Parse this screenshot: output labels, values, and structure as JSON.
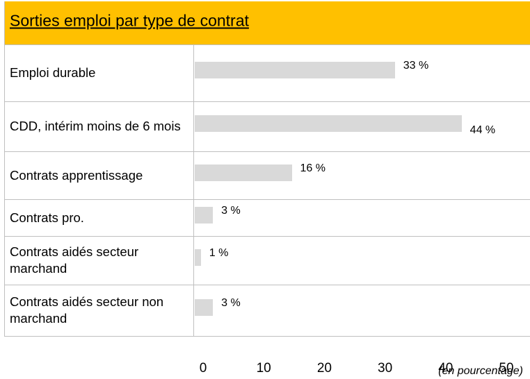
{
  "chart_data": {
    "type": "bar",
    "orientation": "horizontal",
    "title": "Sorties emploi par type de contrat",
    "categories": [
      "Emploi durable",
      "CDD, intérim moins de 6 mois",
      "Contrats apprentissage",
      "Contrats pro.",
      "Contrats aidés secteur marchand",
      "Contrats aidés secteur non marchand"
    ],
    "values": [
      33,
      44,
      16,
      3,
      1,
      3
    ],
    "value_labels": [
      "33 %",
      "44 %",
      "16 %",
      "3 %",
      "1 %",
      "3 %"
    ],
    "color": "#d9d9d9",
    "xlim": [
      0,
      50
    ],
    "xticks": [
      0,
      10,
      20,
      30,
      40,
      50
    ],
    "x_label": "(en pourcentage)",
    "header_color": "#ffc000"
  }
}
